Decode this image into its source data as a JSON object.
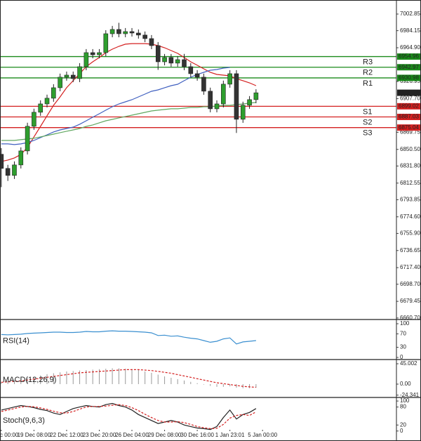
{
  "chart_data": [
    {
      "type": "candlestick",
      "xlim": [
        -0.2,
        60.5
      ],
      "xticks": [
        {
          "value": 0,
          "label": "c 00:00"
        },
        {
          "value": 5,
          "label": "19 Dec 08:00"
        },
        {
          "value": 10,
          "label": "22 Dec 12:00"
        },
        {
          "value": 15,
          "label": "23 Dec 20:00"
        },
        {
          "value": 20,
          "label": "26 Dec 04:00"
        },
        {
          "value": 25,
          "label": "29 Dec 08:00"
        },
        {
          "value": 30,
          "label": "30 Dec 16:00"
        },
        {
          "value": 35,
          "label": "1 Jan 23:01"
        },
        {
          "value": 40,
          "label": "5 Jan 00:00"
        }
      ],
      "ylim": [
        6659,
        7018.65
      ],
      "yticks": [
        7002.85,
        6984.15,
        {
          "value": 6964.9,
          "label": "6964.90"
        },
        6926.95,
        {
          "value": 6907.7,
          "label": "6907.70"
        },
        6869.75,
        {
          "value": 6850.5,
          "label": "6850.50"
        },
        {
          "value": 6831.8,
          "label": "6831.80"
        },
        6812.55,
        6793.85,
        {
          "value": 6774.6,
          "label": "6774.60"
        },
        {
          "value": 6755.9,
          "label": "6755.90"
        },
        6736.65,
        {
          "value": 6717.4,
          "label": "6717.40"
        },
        {
          "value": 6698.7,
          "label": "6698.70"
        },
        6679.45,
        {
          "value": 6660.7,
          "label": "6660.70"
        }
      ],
      "up_color": "#2e9e2e",
      "down_color": "#333333",
      "open": [
        6845.0,
        6829.1,
        6821.2,
        6833.0,
        6848.8,
        6876.5,
        6892.3,
        6901.7,
        6908.1,
        6919.9,
        6931.8,
        6934.1,
        6930.2,
        6943.6,
        6959.4,
        6957.0,
        6959.4,
        6980.7,
        6985.5,
        6980.7,
        6983.1,
        6981.5,
        6979.2,
        6975.2,
        6967.3,
        6949.1,
        6953.9,
        6947.6,
        6951.5,
        6943.6,
        6935.7,
        6931.8,
        6916.0,
        6896.2,
        6901.7,
        6923.9,
        6935.7,
        6884.4,
        6900.2,
        6906.5
      ],
      "high": [
        6852.0,
        6833.1,
        6837.0,
        6852.8,
        6880.5,
        6896.3,
        6905.7,
        6912.1,
        6923.9,
        6935.8,
        6938.1,
        6938.1,
        6947.6,
        6963.4,
        6963.4,
        6963.4,
        6984.7,
        6989.5,
        6993.0,
        6987.1,
        6987.1,
        6985.5,
        6983.2,
        6979.2,
        6971.3,
        6957.9,
        6957.9,
        6955.5,
        6958.0,
        6947.6,
        6939.7,
        6935.8,
        6920.0,
        6905.7,
        6927.9,
        6939.7,
        6939.7,
        6904.2,
        6910.5,
        6918.2
      ],
      "low": [
        6808.0,
        6815.0,
        6817.2,
        6829.0,
        6844.8,
        6872.5,
        6888.3,
        6897.7,
        6904.1,
        6915.9,
        6927.8,
        6926.2,
        6926.2,
        6939.6,
        6953.0,
        6953.0,
        6955.4,
        6976.7,
        6976.7,
        6976.7,
        6977.5,
        6975.2,
        6971.2,
        6963.3,
        6940.0,
        6945.1,
        6943.6,
        6943.6,
        6939.6,
        6931.7,
        6927.8,
        6912.0,
        6892.2,
        6892.2,
        6897.7,
        6919.9,
        6869.0,
        6880.4,
        6896.2,
        6902.5
      ],
      "close": [
        6829.1,
        6821.2,
        6833.0,
        6848.8,
        6876.5,
        6892.3,
        6901.7,
        6908.1,
        6919.9,
        6931.8,
        6934.1,
        6930.2,
        6943.6,
        6959.4,
        6957.0,
        6959.4,
        6980.7,
        6985.5,
        6980.7,
        6983.1,
        6981.5,
        6979.2,
        6975.2,
        6967.3,
        6949.1,
        6953.9,
        6947.6,
        6951.5,
        6943.6,
        6935.7,
        6931.8,
        6916.0,
        6896.2,
        6901.7,
        6923.9,
        6935.7,
        6884.4,
        6900.2,
        6906.5,
        6914.2
      ],
      "series": [
        {
          "color": "#d42020",
          "values": [
            6836.9,
            6838.5,
            6840.9,
            6844.8,
            6852.7,
            6864.6,
            6876.4,
            6888.3,
            6900.1,
            6909.6,
            6919.9,
            6927.8,
            6935.7,
            6943.6,
            6949.1,
            6953.9,
            6959.4,
            6963.3,
            6966.5,
            6968.9,
            6969.6,
            6969.6,
            6969.6,
            6968.9,
            6967.3,
            6964.9,
            6961.7,
            6958.6,
            6953.9,
            6949.1,
            6945.2,
            6941.2,
            6937.2,
            6934.9,
            6934.1,
            6933.3,
            6930.1,
            6927.8,
            6925.4,
            6922.2
          ]
        },
        {
          "color": "#4060c0",
          "values": [
            6856.7,
            6856.7,
            6855.9,
            6856.7,
            6858.2,
            6860.6,
            6863.8,
            6866.9,
            6870.1,
            6872.4,
            6874.0,
            6875.6,
            6878.8,
            6882.7,
            6886.7,
            6890.6,
            6894.6,
            6898.5,
            6901.7,
            6904.0,
            6906.4,
            6909.6,
            6912.7,
            6915.9,
            6917.5,
            6919.9,
            6922.2,
            6923.8,
            6927.8,
            6931.7,
            6934.9,
            6937.2,
            6939.6,
            6940.4,
            6942.0,
            6942.8,
            null,
            null,
            null,
            null
          ]
        },
        {
          "color": "#60a860",
          "values": [
            6860.6,
            6860.6,
            6860.6,
            6861.4,
            6862.2,
            6863.0,
            6864.6,
            6866.1,
            6867.7,
            6869.3,
            6870.9,
            6872.4,
            6874.0,
            6876.4,
            6878.0,
            6880.4,
            6882.7,
            6884.3,
            6885.9,
            6887.5,
            6889.0,
            6890.6,
            6892.2,
            6893.8,
            6894.6,
            6895.4,
            6896.2,
            6896.2,
            6896.9,
            6897.7,
            6897.7,
            6898.5,
            6898.5,
            6899.3,
            6900.1,
            6900.1,
            6900.9,
            6901.7,
            6902.5,
            6903.3
          ]
        }
      ],
      "levels": [
        {
          "name": "R3",
          "value": 6954.96,
          "color": "#1a8a1a"
        },
        {
          "name": "R2",
          "value": 6942.97,
          "color": "#1a8a1a"
        },
        {
          "name": "R1",
          "value": 6930.98,
          "color": "#1a8a1a"
        },
        {
          "name": "S1",
          "value": 6899.02,
          "color": "#d42020"
        },
        {
          "name": "S2",
          "value": 6887.03,
          "color": "#d42020"
        },
        {
          "name": "S3",
          "value": 6875.04,
          "color": "#d42020"
        }
      ],
      "last_price": 6914.24
    },
    {
      "type": "line",
      "title": "RSI(14)",
      "ylim": [
        -6.25,
        112.5
      ],
      "yticks": [
        100,
        70,
        30,
        0
      ],
      "series": [
        {
          "color": "#3a8fd0",
          "values": [
            68,
            67,
            68,
            69,
            71,
            72,
            73,
            74,
            75,
            75,
            74,
            74,
            75,
            77,
            76,
            76,
            78,
            79,
            78,
            78,
            77,
            76,
            75,
            73,
            65,
            66,
            63,
            64,
            60,
            57,
            55,
            50,
            45,
            48,
            55,
            58,
            40,
            46,
            48,
            50
          ]
        }
      ]
    },
    {
      "type": "macd",
      "title": "MACD(12,26,9)",
      "ylim": [
        -29.5,
        54.3
      ],
      "yticks": [
        45.002,
        {
          "value": 0,
          "label": "0.00"
        },
        -24.341
      ],
      "histogram": {
        "color": "#999999",
        "values": [
          5,
          6,
          8,
          10,
          13,
          16,
          19,
          22,
          24,
          26,
          28,
          29,
          30,
          31,
          32,
          33,
          34,
          35,
          35,
          34,
          33,
          31,
          28,
          25,
          21,
          17,
          14,
          11,
          8,
          5,
          2,
          -1,
          -4,
          -6,
          -6,
          -5,
          -8,
          -9,
          -9,
          -8
        ]
      },
      "series": [
        {
          "color": "#d42020",
          "dash": true,
          "values": [
            4,
            5,
            6,
            7,
            9,
            11,
            13,
            15,
            17,
            19,
            21,
            23,
            25,
            26,
            27,
            28,
            29,
            30,
            31,
            32,
            32,
            32,
            31,
            30,
            28,
            26,
            24,
            21,
            18,
            15,
            12,
            9,
            6,
            3,
            1,
            -1,
            -3,
            -5,
            -6,
            -7
          ]
        }
      ]
    },
    {
      "type": "line",
      "title": "Stoch(9,6,3)",
      "ylim": [
        -33.3,
        111.9
      ],
      "yticks": [
        100,
        80,
        20,
        0
      ],
      "series": [
        {
          "color": "#222222",
          "values": [
            70,
            75,
            80,
            85,
            82,
            78,
            72,
            68,
            60,
            55,
            65,
            75,
            80,
            85,
            82,
            80,
            88,
            92,
            85,
            80,
            70,
            55,
            45,
            35,
            25,
            30,
            35,
            30,
            20,
            15,
            10,
            8,
            5,
            15,
            45,
            70,
            40,
            55,
            62,
            75
          ]
        },
        {
          "color": "#d42020",
          "dash": true,
          "values": [
            65,
            70,
            75,
            80,
            82,
            81,
            77,
            72,
            66,
            61,
            60,
            65,
            73,
            80,
            82,
            82,
            83,
            86,
            88,
            85,
            78,
            68,
            56,
            45,
            35,
            30,
            30,
            31,
            28,
            22,
            15,
            11,
            8,
            9,
            22,
            43,
            52,
            55,
            52,
            64
          ]
        }
      ]
    }
  ]
}
